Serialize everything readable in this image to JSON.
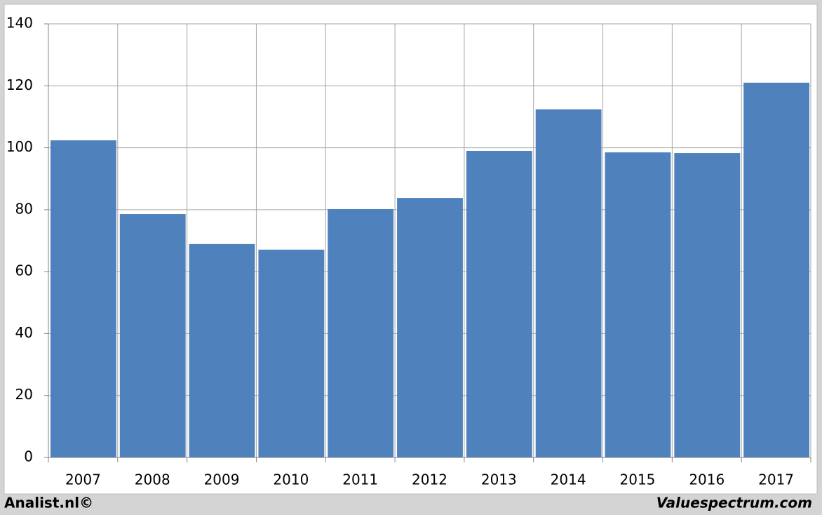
{
  "chart_data": {
    "type": "bar",
    "categories": [
      "2007",
      "2008",
      "2009",
      "2010",
      "2011",
      "2012",
      "2013",
      "2014",
      "2015",
      "2016",
      "2017"
    ],
    "values": [
      102.4,
      78.6,
      68.9,
      67.1,
      80.2,
      83.8,
      99.0,
      112.4,
      98.5,
      98.3,
      121.0
    ],
    "color": "#4f81bd",
    "ylim": [
      0,
      140
    ],
    "yticks": [
      0,
      20,
      40,
      60,
      80,
      100,
      120,
      140
    ],
    "grid": true,
    "credits": [
      "Analist.nl©",
      "Valuespectrum.com"
    ]
  }
}
